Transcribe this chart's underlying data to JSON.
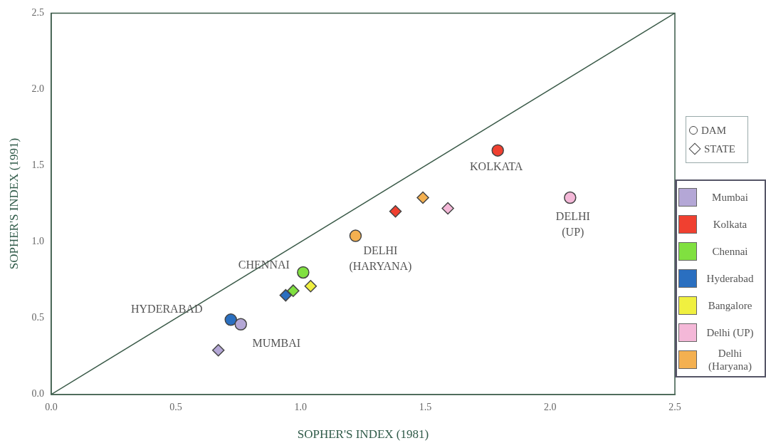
{
  "chart_data": {
    "type": "scatter",
    "xlabel": "SOPHER'S INDEX (1981)",
    "ylabel": "SOPHER'S INDEX (1991)",
    "xlim": [
      0,
      2.5
    ],
    "ylim": [
      0,
      2.5
    ],
    "xticks": [
      {
        "value": 0,
        "label": "0.0"
      },
      {
        "value": 0.5,
        "label": "0.5"
      },
      {
        "value": 1,
        "label": "1.0"
      },
      {
        "value": 1.5,
        "label": "1.5"
      },
      {
        "value": 2,
        "label": "2.0"
      },
      {
        "value": 2.5,
        "label": "2.5"
      }
    ],
    "yticks": [
      {
        "value": 0,
        "label": "0.0"
      },
      {
        "value": 0.5,
        "label": "0.5"
      },
      {
        "value": 1,
        "label": "1.0"
      },
      {
        "value": 1.5,
        "label": "1.5"
      },
      {
        "value": 2,
        "label": "2.0"
      },
      {
        "value": 2.5,
        "label": "2.5"
      }
    ],
    "grid": false,
    "legend": "right",
    "series": [
      {
        "type": "line",
        "color": "#3a5a48",
        "marker": "none",
        "x": [
          0,
          2.5
        ],
        "values": [
          0,
          2.5
        ]
      },
      {
        "name": "Mumbai",
        "color": "#b4a7d6",
        "marker": "circle",
        "x": [
          0.76
        ],
        "values": [
          0.46
        ]
      },
      {
        "color": "#b4a7d6",
        "marker": "diamond",
        "x": [
          0.67
        ],
        "values": [
          0.29
        ]
      },
      {
        "name": "Kolkata",
        "color": "#f04030",
        "marker": "circle",
        "x": [
          1.79
        ],
        "values": [
          1.6
        ]
      },
      {
        "color": "#f04030",
        "marker": "diamond",
        "x": [
          1.38
        ],
        "values": [
          1.2
        ]
      },
      {
        "name": "Chennai",
        "color": "#80e040",
        "marker": "circle",
        "x": [
          1.01
        ],
        "values": [
          0.8
        ]
      },
      {
        "color": "#80e040",
        "marker": "diamond",
        "x": [
          0.97
        ],
        "values": [
          0.68
        ]
      },
      {
        "name": "Hyderabad",
        "color": "#2a6fc0",
        "marker": "circle",
        "x": [
          0.72
        ],
        "values": [
          0.49
        ]
      },
      {
        "color": "#2a6fc0",
        "marker": "diamond",
        "x": [
          0.94
        ],
        "values": [
          0.65
        ]
      },
      {
        "name": "Bangalore",
        "color": "#f0f040",
        "marker": "diamond",
        "x": [
          1.04
        ],
        "values": [
          0.71
        ]
      },
      {
        "name": "Delhi (UP)",
        "color": "#f4b8d8",
        "marker": "circle",
        "x": [
          2.08
        ],
        "values": [
          1.29
        ]
      },
      {
        "color": "#f4b8d8",
        "marker": "diamond",
        "x": [
          1.59
        ],
        "values": [
          1.22
        ]
      },
      {
        "name": "Delhi (Haryana)",
        "color": "#f4b050",
        "marker": "circle",
        "x": [
          1.22
        ],
        "values": [
          1.04
        ]
      },
      {
        "color": "#f4b050",
        "marker": "diamond",
        "x": [
          1.49
        ],
        "values": [
          1.29
        ]
      }
    ],
    "annotations": [
      "DAM",
      "STATE",
      {
        "text": "HYDERABAD",
        "x": 0.72,
        "y": 0.49
      },
      {
        "text": "MUMBAI",
        "x": 0.76,
        "y": 0.46
      },
      {
        "text": "CHENNAI",
        "x": 1.01,
        "y": 0.8
      },
      {
        "text": "DELHI\n(HARYANA)",
        "x": 1.22,
        "y": 1.04
      },
      {
        "text": "KOLKATA",
        "x": 1.79,
        "y": 1.6
      },
      {
        "text": "DELHI\n(UP)",
        "x": 2.08,
        "y": 1.29
      }
    ]
  }
}
